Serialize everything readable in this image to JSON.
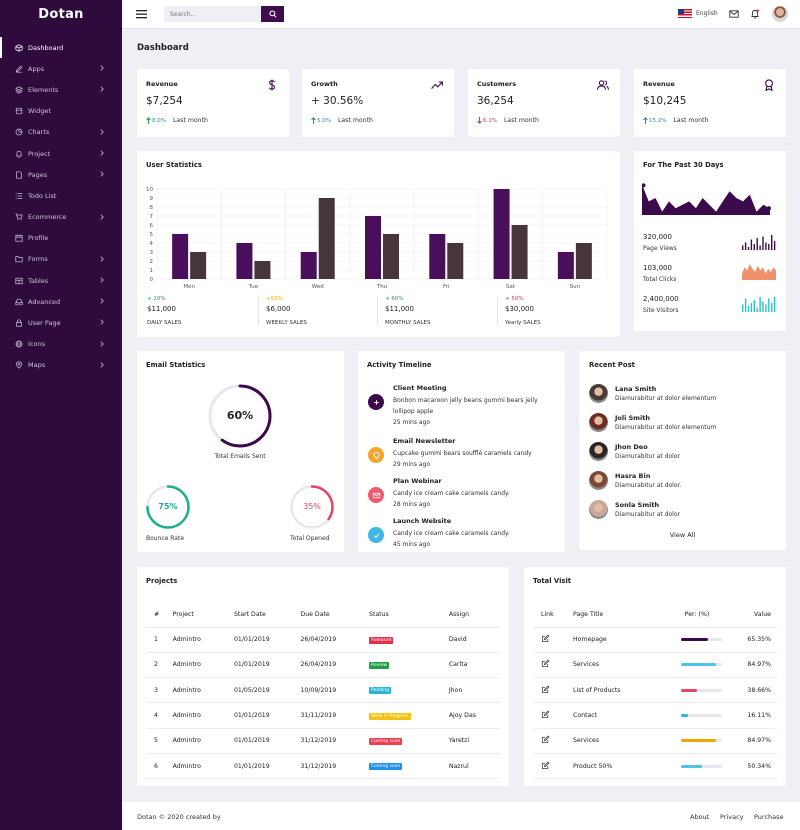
{
  "brand": "Dotan",
  "nav": [
    {
      "label": "Dashboard",
      "icon": "cube-icon",
      "active": true,
      "chevron": false
    },
    {
      "label": "Apps",
      "icon": "edit-icon",
      "chevron": true
    },
    {
      "label": "Elements",
      "icon": "layers-icon",
      "chevron": true
    },
    {
      "label": "Widget",
      "icon": "widget-icon",
      "chevron": false
    },
    {
      "label": "Charts",
      "icon": "pie-chart-icon",
      "chevron": true
    },
    {
      "label": "Project",
      "icon": "bell-icon",
      "chevron": true
    },
    {
      "label": "Pages",
      "icon": "file-icon",
      "chevron": true
    },
    {
      "label": "Todo List",
      "icon": "list-icon",
      "chevron": false
    },
    {
      "label": "Ecommerce",
      "icon": "cart-icon",
      "chevron": true
    },
    {
      "label": "Profile",
      "icon": "calendar-icon",
      "chevron": false
    },
    {
      "label": "Forms",
      "icon": "folder-icon",
      "chevron": true
    },
    {
      "label": "Tables",
      "icon": "table-icon",
      "chevron": true
    },
    {
      "label": "Advanced",
      "icon": "inbox-icon",
      "chevron": true
    },
    {
      "label": "User Page",
      "icon": "lock-icon",
      "chevron": true
    },
    {
      "label": "Icons",
      "icon": "globe-icon",
      "chevron": true
    },
    {
      "label": "Maps",
      "icon": "map-pin-icon",
      "chevron": true
    }
  ],
  "topbar": {
    "search_placeholder": "Search...",
    "language": "English"
  },
  "page_title": "Dashboard",
  "stats": [
    {
      "title": "Revenue",
      "value": "$7,254",
      "pct": "8.0%",
      "period": "Last month",
      "up": true,
      "icon": "dollar-icon"
    },
    {
      "title": "Growth",
      "value": "+ 30.56%",
      "pct": "5.0%",
      "period": "Last month",
      "up": true,
      "icon": "trending-up-icon"
    },
    {
      "title": "Customers",
      "value": "36,254",
      "pct": "6.1%",
      "period": "Last month",
      "up": false,
      "icon": "users-icon"
    },
    {
      "title": "Revenue",
      "value": "$10,245",
      "pct": "15.2%",
      "period": "Last month",
      "up": true,
      "icon": "award-icon"
    }
  ],
  "user_statistics": {
    "title": "User Statistics",
    "legend": [
      {
        "change": "+ 20%",
        "value": "$11,000",
        "label": "DAILY SALES",
        "color": "#2e9a4c"
      },
      {
        "change": "+50%",
        "value": "$6,000",
        "label": "WEEKLY SALES",
        "color": "#f0a500"
      },
      {
        "change": "+ 60%",
        "value": "$11,000",
        "label": "MONTHLY SALES",
        "color": "#2e9a4c"
      },
      {
        "change": "+ 50%",
        "value": "$30,000",
        "label": "Yearly SALES",
        "color": "#e0314b"
      }
    ]
  },
  "chart_data": {
    "type": "bar",
    "categories": [
      "Mon",
      "Tue",
      "Wed",
      "Thu",
      "Fri",
      "Sat",
      "Sun"
    ],
    "series": [
      {
        "values": [
          5,
          4,
          3,
          7,
          5,
          10,
          3
        ],
        "color": "#4a0f5c"
      },
      {
        "values": [
          3,
          2,
          9,
          5,
          4,
          6,
          4
        ],
        "color": "#47353c"
      }
    ],
    "ylim": [
      0,
      10
    ],
    "yticks": [
      "0",
      "1",
      "2",
      "3",
      "4",
      "5",
      "6",
      "7",
      "8",
      "9",
      "10"
    ],
    "grid": true
  },
  "past30": {
    "title": "For The Past 30 Days",
    "area": [
      9,
      4,
      5,
      1,
      4,
      2,
      3,
      4,
      2,
      5,
      3,
      1,
      4,
      7,
      5,
      4,
      6,
      1,
      3,
      2
    ],
    "stats": [
      {
        "value": "320,000",
        "label": "Page Views",
        "color": "#3b0a4a",
        "bars": [
          3,
          5,
          2,
          7,
          4,
          8,
          3,
          9,
          5,
          4,
          10,
          6
        ]
      },
      {
        "value": "103,000",
        "label": "Total Clicks",
        "color": "#f0906d",
        "bars": [
          4,
          8,
          6,
          10,
          7,
          5,
          9,
          6,
          8,
          4,
          7,
          5,
          8,
          6
        ]
      },
      {
        "value": "2,400,000",
        "label": "Site Visitors",
        "color": "#26c0d6",
        "bars": [
          5,
          9,
          4,
          6,
          8,
          3,
          10,
          7,
          5,
          9,
          6,
          10
        ]
      }
    ]
  },
  "email_statistics": {
    "title": "Email Statistics",
    "main": {
      "value": "60%",
      "label": "Total Emails Sent",
      "fraction": 0.6,
      "color": "#3b0a4a"
    },
    "bounce": {
      "value": "75%",
      "label": "Bounce Rate",
      "fraction": 0.75,
      "color": "#1bb28a"
    },
    "opened": {
      "value": "35%",
      "label": "Total Opened",
      "fraction": 0.35,
      "color": "#e8465f"
    }
  },
  "timeline": {
    "title": "Activity Timeline",
    "items": [
      {
        "title": "Client Meeting",
        "desc": "Bonbon macaroon jelly beans gummi bears jelly lollipop apple",
        "time": "25 mins ago",
        "color": "#3b0a4a",
        "icon": "plus-icon"
      },
      {
        "title": "Email Newsletter",
        "desc": "Cupcake gummi bears soufflé caramels candy",
        "time": "29 mins ago",
        "color": "#f4a52b",
        "icon": "lightbulb-icon"
      },
      {
        "title": "Plan Webinar",
        "desc": "Candy ice cream cake caramels candy.",
        "time": "28 mins ago",
        "color": "#ef5a6f",
        "icon": "mail-icon"
      },
      {
        "title": "Launch Website",
        "desc": "Candy ice cream cake caramels candy.",
        "time": "45 mins ago",
        "color": "#3fb7e4",
        "icon": "check-icon"
      }
    ]
  },
  "recent_post": {
    "title": "Recent Post",
    "posts": [
      {
        "name": "Lana Smith",
        "desc": "Diamurabitur at dolor elementum"
      },
      {
        "name": "Joli Smith",
        "desc": "Diamurabitur at dolor elementum"
      },
      {
        "name": "Jhon Deo",
        "desc": "Diamurabitur at dolor"
      },
      {
        "name": "Hasra Bin",
        "desc": "Diamurabitur at dolor."
      },
      {
        "name": "Sonla Smith",
        "desc": "Diamurabitur at dolor"
      }
    ],
    "view_all": "View All"
  },
  "projects": {
    "title": "Projects",
    "headers": [
      "#",
      "Project",
      "Start Date",
      "Due Date",
      "Status",
      "Assign"
    ],
    "rows": [
      {
        "n": "1",
        "project": "Admintro",
        "start": "01/01/2019",
        "due": "26/04/2019",
        "status": "Released",
        "color": "#e0314b",
        "assign": "David"
      },
      {
        "n": "2",
        "project": "Admintro",
        "start": "01/01/2019",
        "due": "26/04/2019",
        "status": "Review",
        "color": "#1ea04a",
        "assign": "Carlta"
      },
      {
        "n": "3",
        "project": "Admintro",
        "start": "01/05/2019",
        "due": "10/09/2019",
        "status": "Pending",
        "color": "#2cb5d8",
        "assign": "Jhon"
      },
      {
        "n": "4",
        "project": "Admintro",
        "start": "01/01/2019",
        "due": "31/11/2019",
        "status": "Work in Progress",
        "color": "#f4c20d",
        "assign": "Ajoy Das"
      },
      {
        "n": "5",
        "project": "Admintro",
        "start": "01/01/2019",
        "due": "31/12/2019",
        "status": "Coming soon",
        "color": "#ec3e4e",
        "assign": "Yaretzi"
      },
      {
        "n": "6",
        "project": "Admintro",
        "start": "01/01/2019",
        "due": "31/12/2019",
        "status": "Coming soon",
        "color": "#1f8ff0",
        "assign": "Nazrul"
      }
    ]
  },
  "total_visit": {
    "title": "Total Visit",
    "headers": [
      "Link",
      "Page Title",
      "Per: (%)",
      "Value"
    ],
    "rows": [
      {
        "page": "Homepage",
        "value": "65.35%",
        "fraction": 0.6535,
        "color": "#3b0a4a"
      },
      {
        "page": "Services",
        "value": "84.97%",
        "fraction": 0.8497,
        "color": "#4fc3e8"
      },
      {
        "page": "List of Products",
        "value": "38.66%",
        "fraction": 0.3866,
        "color": "#e8465f"
      },
      {
        "page": "Contact",
        "value": "16.11%",
        "fraction": 0.1611,
        "color": "#2cb5d8"
      },
      {
        "page": "Services",
        "value": "84.97%",
        "fraction": 0.8497,
        "color": "#f0a500"
      },
      {
        "page": "Product 50%",
        "value": "50.34%",
        "fraction": 0.5034,
        "color": "#4fc3e8"
      }
    ]
  },
  "footer": {
    "copyright": "Dotan © 2020 created by",
    "links": [
      "About",
      "Privacy",
      "Purchase"
    ]
  }
}
